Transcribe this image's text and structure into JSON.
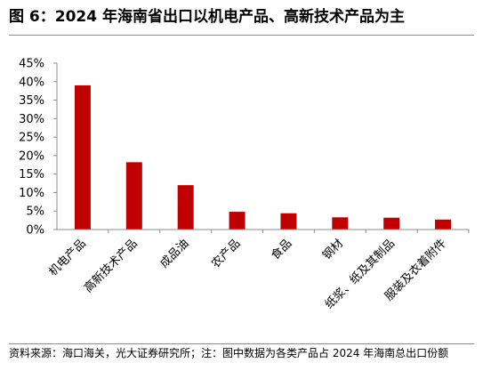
{
  "title": "图 6：2024 年海南省出口以机电产品、高新技术产品为主",
  "note": "资料来源：海口海关，光大证券研究所；注：图中数据为各类产品占 2024 年海南总出口份额",
  "colors": {
    "bar": "#C00000",
    "axis": "#8c8c8c"
  },
  "chart_data": {
    "type": "bar",
    "categories": [
      "机电产品",
      "高新技术产品",
      "成品油",
      "农产品",
      "食品",
      "钢材",
      "纸浆、纸及其制品",
      "服装及衣着附件"
    ],
    "values": [
      0.39,
      0.182,
      0.12,
      0.048,
      0.044,
      0.033,
      0.032,
      0.027
    ],
    "ylim": [
      0,
      0.45
    ],
    "yticks": [
      "0%",
      "5%",
      "10%",
      "15%",
      "20%",
      "25%",
      "30%",
      "35%",
      "40%",
      "45%"
    ],
    "xlabel": "",
    "ylabel": "",
    "grid": false,
    "legend": "none"
  }
}
